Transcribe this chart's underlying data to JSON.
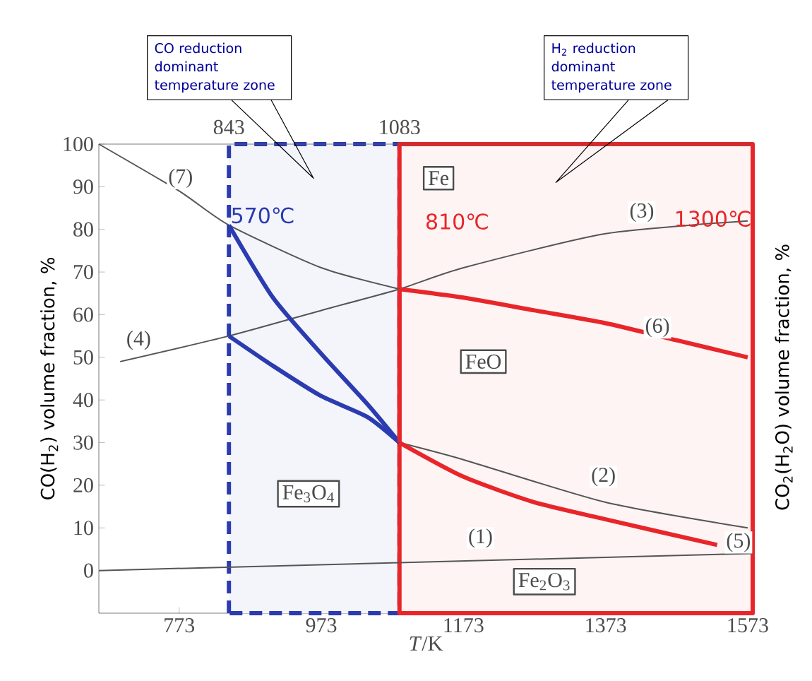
{
  "chart_data": {
    "type": "line",
    "xlabel": "*T*/K",
    "ylabel": "CO(H$_{2}$) volume fraction, %",
    "y2label": "CO$_{2}$(H$_{2}$O) volume fraction, %",
    "xlim": [
      660,
      1580
    ],
    "ylim": [
      -10,
      100
    ],
    "xticks": [
      773,
      973,
      1173,
      1373,
      1573
    ],
    "yticks": [
      0,
      10,
      20,
      30,
      40,
      50,
      60,
      70,
      80,
      90,
      100
    ],
    "x2lim": [
      660,
      1580
    ],
    "x2ticks": [
      843,
      1083
    ],
    "marker": "none",
    "series": [
      {
        "color": "#555555",
        "x": [
          660,
          773,
          843,
          973,
          1083
        ],
        "values": [
          100,
          89,
          81,
          71,
          66
        ]
      },
      {
        "color": "#555555",
        "x": [
          690,
          843,
          973,
          1083,
          1173,
          1373,
          1573
        ],
        "values": [
          49,
          55,
          61,
          66,
          71,
          79,
          82
        ]
      },
      {
        "color": "#e8262a",
        "x": [
          1083,
          1173,
          1273,
          1373,
          1473,
          1573
        ],
        "values": [
          66,
          64,
          61,
          58,
          54,
          50
        ]
      },
      {
        "color": "#2b3bb0",
        "x": [
          843,
          905,
          972,
          1038,
          1083
        ],
        "values": [
          81,
          64,
          51,
          39,
          30
        ]
      },
      {
        "color": "#2b3bb0",
        "x": [
          843,
          905,
          972,
          1038,
          1083
        ],
        "values": [
          55,
          48,
          41,
          36,
          30
        ]
      },
      {
        "color": "#e8262a",
        "x": [
          1083,
          1083
        ],
        "values": [
          66,
          30
        ]
      },
      {
        "color": "#555555",
        "x": [
          1083,
          1173,
          1373,
          1573
        ],
        "values": [
          30,
          26,
          16,
          10
        ]
      },
      {
        "color": "#e8262a",
        "x": [
          1083,
          1173,
          1273,
          1373,
          1530
        ],
        "values": [
          30,
          22,
          16,
          12,
          6
        ]
      },
      {
        "color": "#555555",
        "x": [
          660,
          1580
        ],
        "values": [
          0,
          4
        ]
      }
    ],
    "bands": [
      {
        "axis": "x",
        "from": 843,
        "to": 1083,
        "color": "#2b3bb0"
      },
      {
        "axis": "x",
        "from": 1083,
        "to": 1580,
        "color": "#e8262a"
      }
    ],
    "annotations": [
      {
        "text": "570℃",
        "x": 843,
        "y": 81
      },
      "810℃",
      {
        "text": "1300℃",
        "x": 1524,
        "y": 82.5
      },
      {
        "text": "(7)",
        "x": 775,
        "y": 92
      },
      {
        "text": "(4)",
        "x": 716,
        "y": 54
      },
      {
        "text": "(3)",
        "x": 1424,
        "y": 84
      },
      {
        "text": "(6)",
        "x": 1446,
        "y": 57
      },
      {
        "text": "(2)",
        "x": 1370,
        "y": 22
      },
      {
        "text": "(1)",
        "x": 1197,
        "y": 7.6
      },
      {
        "text": "(5)",
        "x": 1560,
        "y": 6.6
      },
      {
        "text": "Fe",
        "x": 1138,
        "y": 92
      },
      {
        "text": "FeO",
        "x": 1201,
        "y": 49
      },
      {
        "text": "Fe$_{3}$O$_{4}$",
        "x": 955,
        "y": 18
      },
      {
        "text": "Fe$_{2}$O$_{3}$",
        "x": 1287,
        "y": -2.6
      },
      "CO reduction dominant temperature zone",
      "H$_{2}$ reduction dominant temperature zone"
    ]
  }
}
